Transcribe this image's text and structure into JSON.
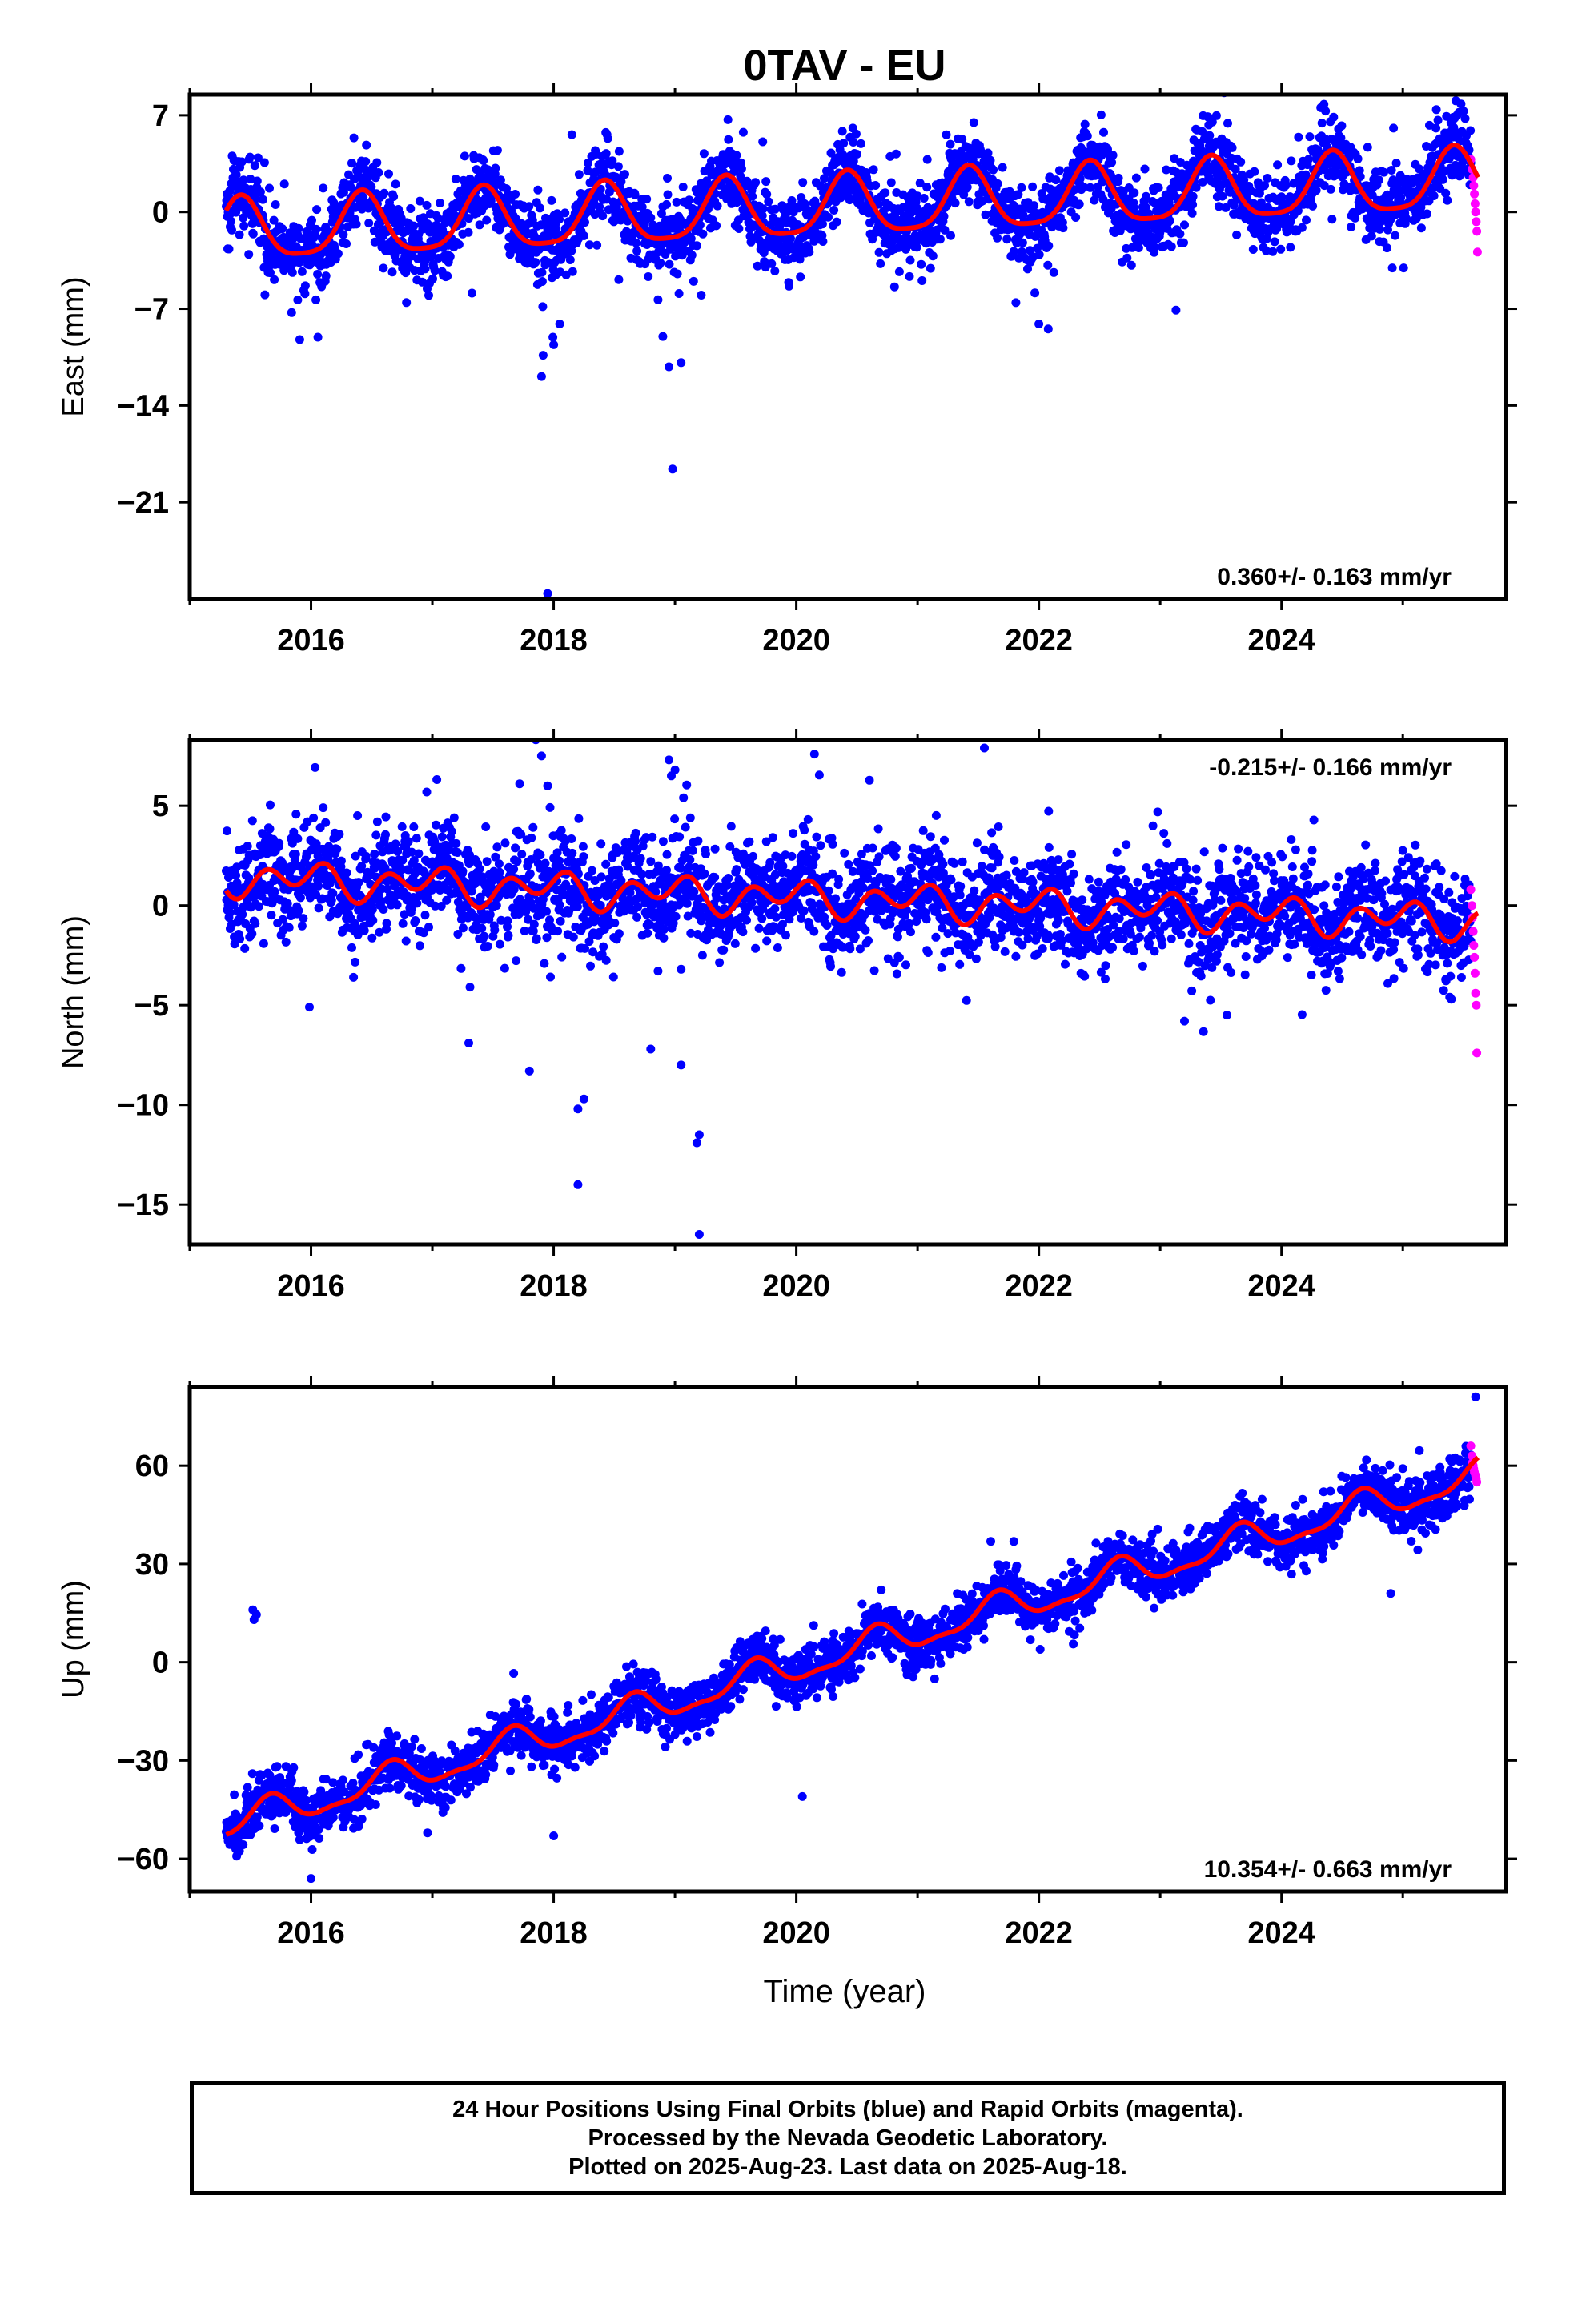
{
  "title": "0TAV - EU",
  "xlabel": "Time (year)",
  "footer": {
    "line1": "24 Hour Positions Using Final Orbits (blue) and Rapid Orbits (magenta).",
    "line2": "Processed by the Nevada Geodetic Laboratory.",
    "line3": "Plotted on 2025-Aug-23. Last data on 2025-Aug-18."
  },
  "colors": {
    "final": "#0000ff",
    "rapid": "#ff00ff",
    "model": "#ff0000",
    "axis": "#000000"
  },
  "chart_data": [
    {
      "type": "scatter",
      "ylabel": "East (mm)",
      "xlim": [
        2015.0,
        2025.85
      ],
      "ylim": [
        -28,
        8.5
      ],
      "xticks": [
        2016,
        2018,
        2020,
        2022,
        2024
      ],
      "yticks": [
        7,
        0,
        -7,
        -14,
        -21
      ],
      "ytick_labels": [
        "7",
        "0",
        "−7",
        "−14",
        "−21"
      ],
      "rate_label": "0.360+/- 0.163 mm/yr",
      "rate_position": "bottom-right",
      "model": {
        "start": 2015.3,
        "end": 2025.62,
        "offset": -1.5,
        "rate": 0.36,
        "annual_amp": 2.2,
        "annual_phase": 2015.17,
        "semi_amp": 0.5,
        "semi_phase": 2015.3
      },
      "noise": 1.4,
      "outliers": [
        [
          2017.9,
          -11.9
        ],
        [
          2018.0,
          -9.6
        ],
        [
          2018.05,
          -8.1
        ],
        [
          2017.95,
          -27.6
        ],
        [
          2018.15,
          5.6
        ],
        [
          2018.95,
          -11.2
        ],
        [
          2018.98,
          -18.6
        ],
        [
          2018.9,
          -9.0
        ],
        [
          2023.4,
          6.3
        ],
        [
          2024.35,
          7.8
        ],
        [
          2025.5,
          7.3
        ],
        [
          2022.0,
          -8.1
        ]
      ],
      "rapid_points": [
        [
          2025.56,
          3.8
        ],
        [
          2025.57,
          3.1
        ],
        [
          2025.58,
          2.5
        ],
        [
          2025.585,
          1.9
        ],
        [
          2025.59,
          1.3
        ],
        [
          2025.595,
          0.6
        ],
        [
          2025.6,
          0.0
        ],
        [
          2025.605,
          -0.7
        ],
        [
          2025.61,
          -1.4
        ],
        [
          2025.615,
          -2.9
        ]
      ]
    },
    {
      "type": "scatter",
      "ylabel": "North (mm)",
      "xlim": [
        2015.0,
        2025.85
      ],
      "ylim": [
        -17,
        8.3
      ],
      "xticks": [
        2016,
        2018,
        2020,
        2022,
        2024
      ],
      "yticks": [
        5,
        0,
        -5,
        -10,
        -15
      ],
      "ytick_labels": [
        "5",
        "0",
        "−5",
        "−10",
        "−15"
      ],
      "rate_label": "-0.215+/- 0.166 mm/yr",
      "rate_position": "top-right",
      "model": {
        "start": 2015.3,
        "end": 2025.62,
        "offset": 1.4,
        "rate": -0.215,
        "annual_amp": 0.45,
        "annual_phase": 2015.7,
        "semi_amp": 0.65,
        "semi_phase": 2015.5
      },
      "noise": 1.3,
      "outliers": [
        [
          2017.9,
          7.5
        ],
        [
          2017.95,
          6.0
        ],
        [
          2018.2,
          -14.0
        ],
        [
          2018.25,
          -9.7
        ],
        [
          2018.2,
          -10.2
        ],
        [
          2017.8,
          -8.3
        ],
        [
          2017.3,
          -6.9
        ],
        [
          2018.8,
          -7.2
        ],
        [
          2018.95,
          7.3
        ],
        [
          2019.0,
          6.8
        ],
        [
          2018.97,
          6.5
        ],
        [
          2019.2,
          -16.5
        ],
        [
          2019.2,
          -11.5
        ],
        [
          2019.18,
          -11.9
        ],
        [
          2021.55,
          7.9
        ],
        [
          2019.05,
          -8.0
        ],
        [
          2023.2,
          -5.8
        ],
        [
          2023.55,
          -5.5
        ]
      ],
      "rapid_points": [
        [
          2025.56,
          0.8
        ],
        [
          2025.57,
          0.0
        ],
        [
          2025.575,
          -0.6
        ],
        [
          2025.58,
          -1.3
        ],
        [
          2025.585,
          -2.0
        ],
        [
          2025.59,
          -2.6
        ],
        [
          2025.595,
          -3.4
        ],
        [
          2025.6,
          -4.4
        ],
        [
          2025.605,
          -5.0
        ],
        [
          2025.61,
          -7.4
        ]
      ]
    },
    {
      "type": "scatter",
      "ylabel": "Up (mm)",
      "xlim": [
        2015.0,
        2025.85
      ],
      "ylim": [
        -70,
        84
      ],
      "xticks": [
        2016,
        2018,
        2020,
        2022,
        2024
      ],
      "yticks": [
        60,
        30,
        0,
        -30,
        -60
      ],
      "ytick_labels": [
        "60",
        "30",
        "0",
        "−30",
        "−60"
      ],
      "rate_label": "10.354+/- 0.663 mm/yr",
      "rate_position": "bottom-right",
      "model": {
        "start": 2015.3,
        "end": 2025.62,
        "offset": -50,
        "rate": 10.354,
        "annual_amp": 4.5,
        "annual_phase": 2015.4,
        "semi_amp": 1.6,
        "semi_phase": 2015.55
      },
      "noise": 4.0,
      "outliers": [
        [
          2015.52,
          16.0
        ],
        [
          2015.53,
          13.0
        ],
        [
          2015.55,
          14.5
        ],
        [
          2020.05,
          -41.0
        ],
        [
          2018.0,
          -53.0
        ],
        [
          2016.0,
          -66.0
        ],
        [
          2024.9,
          21.0
        ],
        [
          2025.6,
          81.0
        ]
      ],
      "rapid_points": [
        [
          2025.56,
          66.0
        ],
        [
          2025.57,
          63.0
        ],
        [
          2025.575,
          61.0
        ],
        [
          2025.58,
          60.0
        ],
        [
          2025.585,
          59.0
        ],
        [
          2025.59,
          58.0
        ],
        [
          2025.6,
          57.0
        ],
        [
          2025.605,
          56.0
        ],
        [
          2025.61,
          55.0
        ]
      ]
    }
  ]
}
